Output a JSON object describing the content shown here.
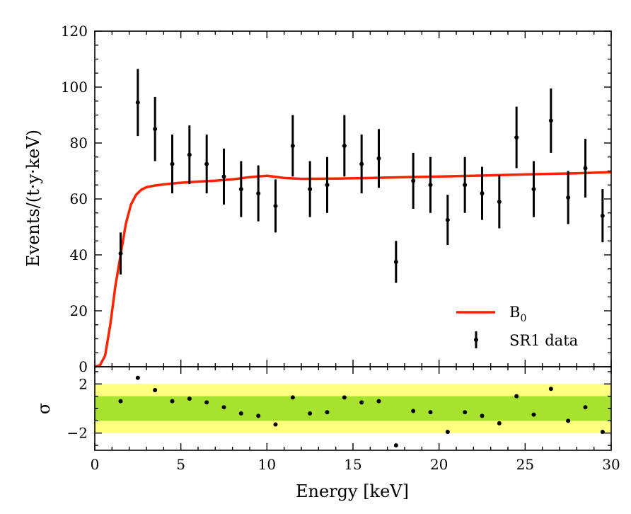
{
  "chart_data": [
    {
      "type": "scatter",
      "ylabel": "Events/(t·y·keV)",
      "xlim": [
        0,
        30
      ],
      "ylim": [
        0,
        120
      ],
      "yticks": [
        "0",
        "20",
        "40",
        "60",
        "80",
        "100",
        "120"
      ],
      "legend_position": "lower-right",
      "grid": false,
      "series": [
        {
          "name": "SR1 data",
          "style": "points-with-errorbars",
          "color": "#000000",
          "x": [
            1.5,
            2.5,
            3.5,
            4.5,
            5.5,
            6.5,
            7.5,
            8.5,
            9.5,
            10.5,
            11.5,
            12.5,
            13.5,
            14.5,
            15.5,
            16.5,
            17.5,
            18.5,
            19.5,
            20.5,
            21.5,
            22.5,
            23.5,
            24.5,
            25.5,
            26.5,
            27.5,
            28.5,
            29.5
          ],
          "y": [
            40.5,
            94.5,
            85,
            72.5,
            75.8,
            72.5,
            68,
            63.5,
            62,
            57.5,
            79,
            63.5,
            65,
            79,
            72.5,
            74.5,
            37.5,
            66.5,
            65,
            52.5,
            65,
            62,
            59,
            82,
            63.5,
            88,
            60.5,
            71,
            54
          ],
          "yerr": [
            7.5,
            12,
            11.5,
            10.5,
            10.5,
            10.5,
            10,
            10,
            10,
            9.5,
            11,
            10,
            10,
            11,
            10.5,
            10.5,
            7.5,
            10,
            10,
            9,
            10,
            9.5,
            9.5,
            11,
            10,
            11.5,
            9.5,
            10.5,
            9.5
          ]
        },
        {
          "name": "B",
          "name_subscript": "0",
          "style": "line",
          "color": "#ff2200",
          "x": [
            0,
            0.3,
            0.6,
            0.9,
            1.2,
            1.5,
            1.8,
            2.1,
            2.4,
            2.7,
            3,
            3.5,
            4,
            5,
            6,
            7,
            8,
            9,
            10,
            11,
            12,
            14,
            16,
            18,
            20,
            22,
            24,
            26,
            28,
            30
          ],
          "y": [
            0,
            0.5,
            4,
            15,
            29,
            40,
            51,
            58,
            61.5,
            63.3,
            64.2,
            64.8,
            65.2,
            65.8,
            66.2,
            66.5,
            67,
            67.8,
            68.3,
            67.5,
            67.2,
            67.3,
            67.5,
            67.8,
            68,
            68.3,
            68.6,
            68.9,
            69.2,
            69.6
          ]
        }
      ]
    },
    {
      "type": "scatter",
      "ylabel": "σ",
      "xlabel": "Energy [keV]",
      "xlim": [
        0,
        30
      ],
      "ylim": [
        -3.4,
        3.4
      ],
      "xticks": [
        "0",
        "5",
        "10",
        "15",
        "20",
        "25",
        "30"
      ],
      "yticks": [
        "2",
        "−2"
      ],
      "bands": [
        {
          "from": -2,
          "to": 2,
          "color": "#ffff80"
        },
        {
          "from": -1,
          "to": 1,
          "color": "#a6e22e"
        }
      ],
      "series": [
        {
          "name": "residuals",
          "color": "#000000",
          "x": [
            1.5,
            2.5,
            3.5,
            4.5,
            5.5,
            6.5,
            7.5,
            8.5,
            9.5,
            10.5,
            11.5,
            12.5,
            13.5,
            14.5,
            15.5,
            16.5,
            17.5,
            18.5,
            19.5,
            20.5,
            21.5,
            22.5,
            23.5,
            24.5,
            25.5,
            26.5,
            27.5,
            28.5,
            29.5
          ],
          "y": [
            0.6,
            2.5,
            1.5,
            0.6,
            0.8,
            0.5,
            0.1,
            -0.4,
            -0.6,
            -1.3,
            0.9,
            -0.4,
            -0.3,
            0.9,
            0.5,
            0.6,
            -3.0,
            -0.2,
            -0.3,
            -1.9,
            -0.3,
            -0.6,
            -1.2,
            1.0,
            -0.5,
            1.6,
            -1.0,
            0.1,
            -1.9
          ]
        }
      ]
    }
  ]
}
